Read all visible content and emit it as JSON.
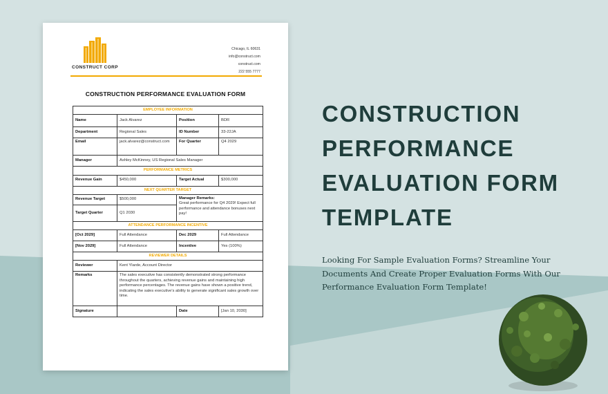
{
  "document": {
    "company": "CONSTRUCT CORP",
    "contact": [
      "Chicago, IL 60631",
      "info@construct.com",
      "construct.com",
      "222 555 7777"
    ],
    "title": "CONSTRUCTION PERFORMANCE EVALUATION FORM",
    "sections": {
      "employee": {
        "header": "EMPLOYEE INFORMATION",
        "name_label": "Name",
        "name": "Jack Alvarez",
        "position_label": "Position",
        "position": "BDR",
        "department_label": "Department",
        "department": "Regional Sales",
        "id_label": "ID Number",
        "id": "33-22JA",
        "email_label": "Email",
        "email": "jack.alvarez@construct.com",
        "quarter_label": "For Quarter",
        "quarter": "Q4 2029",
        "manager_label": "Manager",
        "manager": "Ashley McKinney, US Regional Sales Manager"
      },
      "metrics": {
        "header": "PERFORMANCE METRICS",
        "gain_label": "Revenue Gain",
        "gain": "$450,000",
        "target_label": "Target Actual",
        "target": "$300,000"
      },
      "next_quarter": {
        "header": "NEXT QUARTER TARGET",
        "revenue_label": "Revenue Target",
        "revenue": "$500,000",
        "quarter_label": "Target Quarter",
        "quarter": "Q1 2030",
        "remarks_label": "Manager Remarks:",
        "remarks": "Great performance for Q4 2029! Expect full performance and attendance bonuses next pay!"
      },
      "attendance": {
        "header": "ATTENDANCE  PERFORMANCE INCENTIVE",
        "oct_label": "[Oct 2029]",
        "oct": "Full Attendance",
        "dec_label": "Dec 2029",
        "dec": "Full Attendance",
        "nov_label": "[Nov 2029]",
        "nov": "Full Attendance",
        "incentive_label": "Incentive",
        "incentive": "Yes (100%)"
      },
      "reviewer": {
        "header": "REVIEWER DETAILS",
        "reviewer_label": "Reviewer",
        "reviewer": "Kent Ylarde, Account Director",
        "remarks_label": "Remarks",
        "remarks": "The sales executive has consistently demonstrated strong performance throughout the quarters, achieving revenue gains and maintaining high performance percentages. The revenue gains have shown a positive trend, indicating the sales executive's ability to generate significant sales growth over time.",
        "signature_label": "Signature",
        "signature": "",
        "date_label": "Date",
        "date": "[Jan 10, 2030]"
      }
    }
  },
  "promo": {
    "heading": [
      "CONSTRUCTION",
      "PERFORMANCE",
      "EVALUATION FORM",
      "TEMPLATE"
    ],
    "description": "Looking For Sample Evaluation Forms? Streamline Your Documents And Create Proper Evaluation Forms With Our Performance Evaluation Form Template!"
  },
  "colors": {
    "accent": "#f2a900",
    "heading": "#1f3d3b",
    "background": "#d4e2e2",
    "background_band": "#a9c7c6"
  },
  "icons": [
    "building-logo-icon",
    "plant-image"
  ]
}
